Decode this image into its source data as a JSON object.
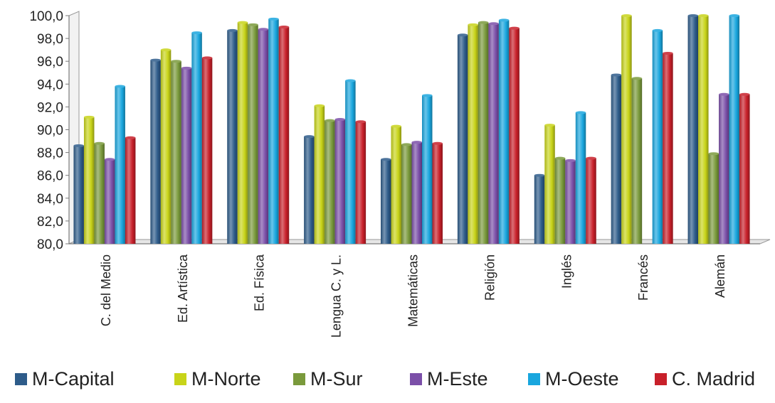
{
  "chart_data": {
    "type": "bar",
    "categories": [
      "C. del Medio",
      "Ed. Artística",
      "Ed. Física",
      "Lengua C. y L.",
      "Matemáticas",
      "Religión",
      "Inglés",
      "Francés",
      "Alemán"
    ],
    "series": [
      {
        "name": "M-Capital",
        "color": "#2E5C8A",
        "values": [
          88.6,
          96.1,
          98.7,
          89.4,
          87.4,
          98.3,
          86.0,
          94.8,
          100.0
        ]
      },
      {
        "name": "M-Norte",
        "color": "#C8D419",
        "values": [
          91.1,
          97.0,
          99.4,
          92.1,
          90.3,
          99.2,
          90.4,
          100.0,
          100.0
        ]
      },
      {
        "name": "M-Sur",
        "color": "#7A9A3C",
        "values": [
          88.8,
          96.0,
          99.2,
          90.8,
          88.7,
          99.4,
          87.5,
          94.5,
          87.9
        ]
      },
      {
        "name": "M-Este",
        "color": "#7B4FA8",
        "values": [
          87.4,
          95.4,
          98.8,
          90.9,
          88.9,
          99.3,
          87.3,
          null,
          93.1
        ]
      },
      {
        "name": "M-Oeste",
        "color": "#19A6DE",
        "values": [
          93.8,
          98.5,
          99.7,
          94.3,
          93.0,
          99.6,
          91.5,
          98.7,
          100.0
        ]
      },
      {
        "name": "C. Madrid",
        "color": "#C8202A",
        "values": [
          89.3,
          96.3,
          99.0,
          90.7,
          88.8,
          98.9,
          87.5,
          96.7,
          93.1
        ]
      }
    ],
    "yticks": [
      "80,0",
      "82,0",
      "84,0",
      "86,0",
      "88,0",
      "90,0",
      "92,0",
      "94,0",
      "96,0",
      "98,0",
      "100,0"
    ],
    "ylim": [
      80,
      100
    ],
    "grid": false,
    "legend_position": "bottom"
  }
}
